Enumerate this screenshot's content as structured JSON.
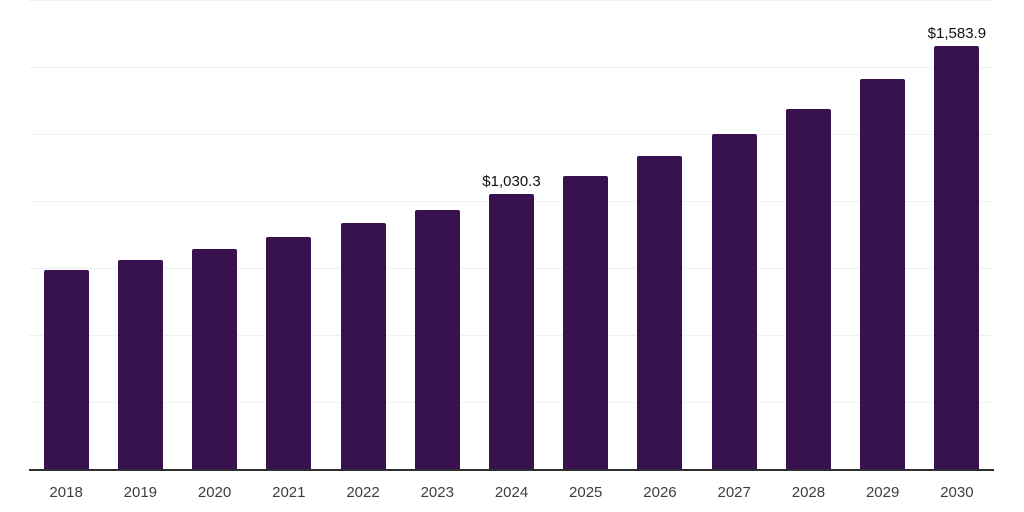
{
  "chart_data": {
    "type": "bar",
    "title": "",
    "xlabel": "",
    "ylabel": "",
    "categories": [
      "2018",
      "2019",
      "2020",
      "2021",
      "2022",
      "2023",
      "2024",
      "2025",
      "2026",
      "2027",
      "2028",
      "2029",
      "2030"
    ],
    "values": [
      747,
      783,
      824,
      870,
      920,
      970,
      1030.3,
      1098,
      1170,
      1254,
      1348,
      1460,
      1583.9
    ],
    "data_labels": {
      "2024": "$1,030.3",
      "2030": "$1,583.9"
    },
    "ylim": [
      0,
      1750
    ],
    "y_gridline_step": 250,
    "y_axis_tick_labels_visible": false,
    "grid": true,
    "legend": false,
    "colors": {
      "bar": "#37124e",
      "gridline": "#f0f0f3",
      "axis_line": "#2e2e2e",
      "tick_label": "#3d3d3d",
      "data_label": "#111111",
      "background": "#ffffff"
    }
  }
}
